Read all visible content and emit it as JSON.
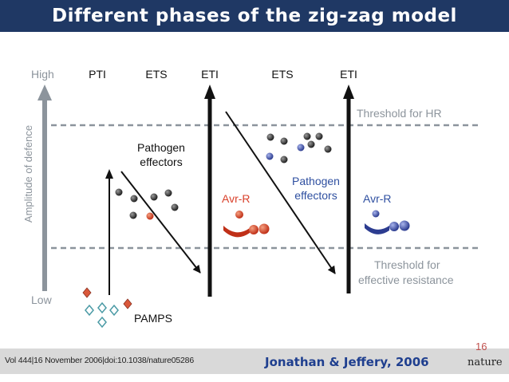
{
  "slide": {
    "title": "Different phases of the zig-zag model",
    "page_number": "16",
    "citation": "Vol 444|16 November 2006|doi:10.1038/nature05286",
    "authors": "Jonathan & Jeffery, 2006",
    "journal": "nature"
  },
  "diagram": {
    "y_axis_label": "Amplitude of defence",
    "axis_high": "High",
    "axis_low": "Low",
    "phases": [
      "PTI",
      "ETS",
      "ETI",
      "ETS",
      "ETI"
    ],
    "threshold_hr": "Threshold for HR",
    "threshold_resistance_line1": "Threshold for",
    "threshold_resistance_line2": "effective resistance",
    "pathogen_effectors_1_line1": "Pathogen",
    "pathogen_effectors_1_line2": "effectors",
    "pathogen_effectors_2_line1": "Pathogen",
    "pathogen_effectors_2_line2": "effectors",
    "avr_r_1": "Avr-R",
    "avr_r_2": "Avr-R",
    "pamps": "PAMPS"
  },
  "colors": {
    "title_bg": "#1f3864",
    "effector_dark": "#333333",
    "effector_red": "#d94a2b",
    "effector_blue": "#4a5ab0",
    "pamp_red": "#d9583a",
    "pamp_teal": "#4a9aa5",
    "avr_red_text": "#d9412b",
    "blue_text": "#2e4fa0"
  }
}
